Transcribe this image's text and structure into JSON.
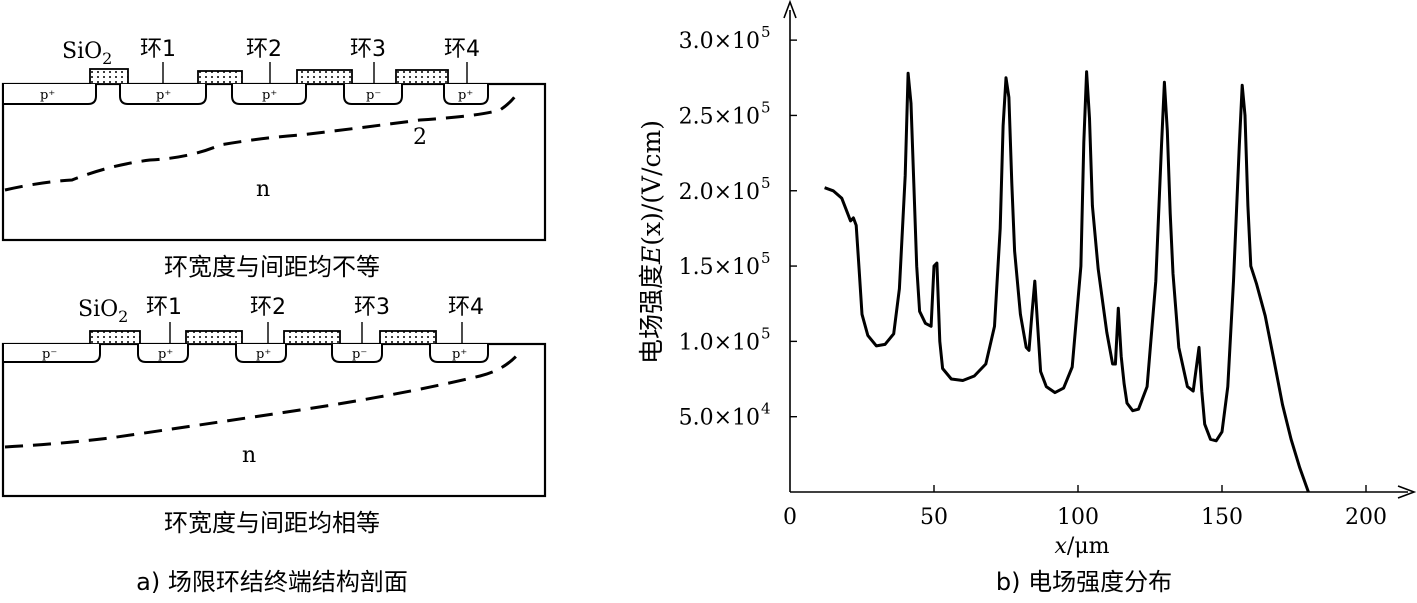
{
  "top_diagram": {
    "sio2_label": "SiO",
    "sio2_sub": "2",
    "rings": [
      "环1",
      "环2",
      "环3",
      "环4"
    ],
    "wells": [
      "p⁺",
      "p⁺",
      "p⁺",
      "p⁻",
      "p⁺"
    ],
    "region_label": "n",
    "curve_label": "2",
    "title": "环宽度与间距均不等"
  },
  "bottom_diagram": {
    "sio2_label": "SiO",
    "sio2_sub": "2",
    "rings": [
      "环1",
      "环2",
      "环3",
      "环4"
    ],
    "wells": [
      "p⁻",
      "p⁺",
      "p⁺",
      "p⁻",
      "p⁺"
    ],
    "region_label": "n",
    "title": "环宽度与间距均相等"
  },
  "captions": {
    "left": "a) 场限环结终端结构剖面",
    "right": "b) 电场强度分布"
  },
  "chart_data": {
    "type": "line",
    "ylabel_prefix": "电场强度",
    "ylabel_var": "E",
    "ylabel_arg": "(x)",
    "ylabel_unit": "/(V/cm)",
    "xlabel_var": "x",
    "xlabel_unit": "/μm",
    "xlim": [
      0,
      220
    ],
    "ylim": [
      0,
      320000
    ],
    "x_ticks": [
      {
        "value": 0,
        "label": "0"
      },
      {
        "value": 50,
        "label": "50"
      },
      {
        "value": 100,
        "label": "100"
      },
      {
        "value": 150,
        "label": "150"
      },
      {
        "value": 200,
        "label": "200"
      }
    ],
    "y_ticks": [
      {
        "value": 50000,
        "mant": "5.0×10",
        "exp": "4"
      },
      {
        "value": 100000,
        "mant": "1.0×10",
        "exp": "5"
      },
      {
        "value": 150000,
        "mant": "1.5×10",
        "exp": "5"
      },
      {
        "value": 200000,
        "mant": "2.0×10",
        "exp": "5"
      },
      {
        "value": 250000,
        "mant": "2.5×10",
        "exp": "5"
      },
      {
        "value": 300000,
        "mant": "3.0×10",
        "exp": "5"
      }
    ],
    "series": [
      {
        "x": [
          12,
          15,
          18,
          20,
          21,
          22,
          23,
          24,
          25,
          27,
          30,
          33,
          36,
          38,
          40,
          41,
          42,
          43,
          44,
          45,
          47,
          49,
          50,
          51,
          52,
          53,
          56,
          60,
          64,
          68,
          71,
          73,
          74,
          75,
          76,
          77,
          78,
          80,
          82,
          83,
          84,
          85,
          86,
          87,
          89,
          92,
          95,
          98,
          101,
          102,
          103,
          104,
          105,
          107,
          110,
          112,
          113,
          114,
          115,
          116,
          117,
          119,
          121,
          124,
          127,
          129,
          130,
          131,
          132,
          133,
          135,
          138,
          140,
          142,
          143,
          144,
          146,
          148,
          150,
          152,
          154,
          156,
          157,
          158,
          159,
          160,
          162,
          165,
          168,
          171,
          174,
          177,
          180
        ],
        "y": [
          202000,
          200000,
          195000,
          185000,
          180000,
          182000,
          177000,
          148000,
          118000,
          104000,
          97000,
          98000,
          105000,
          135000,
          210000,
          278000,
          258000,
          205000,
          150000,
          120000,
          112000,
          110000,
          150000,
          152000,
          100000,
          82000,
          75000,
          74000,
          77000,
          85000,
          110000,
          175000,
          243000,
          275000,
          262000,
          205000,
          160000,
          118000,
          96000,
          94000,
          118000,
          140000,
          110000,
          80000,
          70000,
          66000,
          69000,
          83000,
          150000,
          232000,
          279000,
          248000,
          190000,
          148000,
          106000,
          85000,
          85000,
          122000,
          90000,
          72000,
          59000,
          54000,
          55000,
          70000,
          140000,
          230000,
          272000,
          240000,
          185000,
          145000,
          96000,
          70000,
          67000,
          96000,
          67000,
          45000,
          35000,
          34000,
          40000,
          70000,
          140000,
          230000,
          270000,
          250000,
          190000,
          150000,
          138000,
          117000,
          88000,
          58000,
          35000,
          16000,
          0
        ]
      }
    ]
  }
}
